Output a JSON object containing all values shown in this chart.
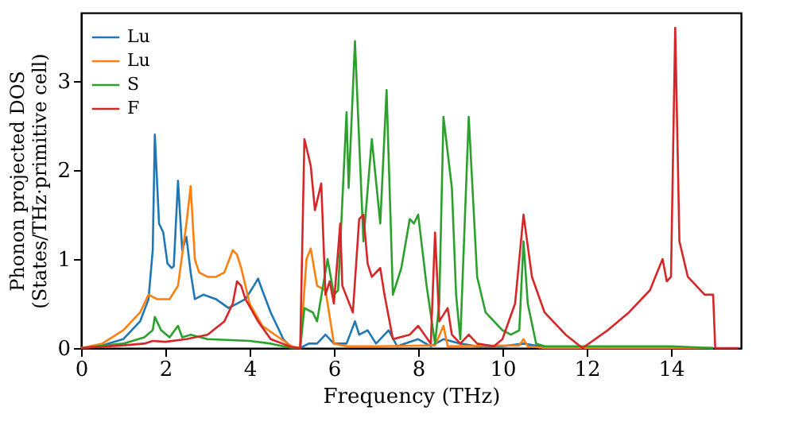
{
  "chart_data": {
    "type": "line",
    "xlabel": "Frequency (THz)",
    "ylabel": "Phonon projected DOS\n(States/THz·primitive cell)",
    "xlim": [
      0,
      15.66
    ],
    "xticks": [
      0,
      2,
      4,
      6,
      8,
      10,
      12,
      14
    ],
    "ylim": [
      0,
      3.77
    ],
    "yticks": [
      0,
      1,
      2,
      3
    ],
    "legend": "top left",
    "grid": false,
    "line_style": "solid",
    "marker": "none",
    "series": [
      {
        "name": "Lu",
        "color": "#1f77b4",
        "x": [
          0,
          0.5,
          1,
          1.4,
          1.6,
          1.7,
          1.75,
          1.85,
          1.95,
          2.05,
          2.15,
          2.2,
          2.3,
          2.4,
          2.5,
          2.6,
          2.7,
          2.9,
          3.2,
          3.5,
          3.7,
          3.9,
          4.1,
          4.2,
          4.3,
          4.5,
          4.8,
          5.0,
          5.2,
          5.4,
          5.6,
          5.8,
          6.0,
          6.3,
          6.5,
          6.6,
          6.8,
          7.0,
          7.3,
          7.5,
          8.0,
          8.3,
          8.6,
          9.0,
          9.5,
          10.0,
          10.5,
          11.0,
          15.0
        ],
        "values": [
          0,
          0.03,
          0.1,
          0.3,
          0.55,
          1.1,
          2.4,
          1.4,
          1.3,
          0.95,
          0.9,
          0.92,
          1.88,
          1.1,
          1.25,
          0.85,
          0.55,
          0.6,
          0.55,
          0.45,
          0.5,
          0.55,
          0.7,
          0.78,
          0.65,
          0.4,
          0.1,
          0,
          0,
          0.05,
          0.05,
          0.15,
          0.05,
          0.05,
          0.3,
          0.15,
          0.2,
          0.05,
          0.2,
          0.02,
          0.1,
          0.02,
          0.1,
          0.05,
          0.01,
          0.02,
          0.05,
          0.01,
          0
        ]
      },
      {
        "name": "Lu",
        "color": "#ff7f0e",
        "x": [
          0,
          0.5,
          1,
          1.4,
          1.6,
          1.8,
          2.1,
          2.3,
          2.5,
          2.6,
          2.7,
          2.8,
          3.0,
          3.2,
          3.4,
          3.6,
          3.7,
          3.8,
          4.0,
          4.3,
          4.6,
          5.0,
          5.2,
          5.35,
          5.45,
          5.6,
          5.8,
          6.0,
          6.3,
          7.0,
          8.4,
          8.6,
          8.7,
          10.4,
          10.5,
          10.6,
          11.0,
          15.0
        ],
        "values": [
          0,
          0.05,
          0.2,
          0.4,
          0.6,
          0.55,
          0.55,
          0.7,
          1.4,
          1.82,
          1.0,
          0.85,
          0.8,
          0.8,
          0.85,
          1.1,
          1.05,
          0.9,
          0.5,
          0.25,
          0.15,
          0.02,
          0,
          1.0,
          1.12,
          0.7,
          0.65,
          0.05,
          0.02,
          0.02,
          0.03,
          0.25,
          0.02,
          0.03,
          0.1,
          0.02,
          0,
          0
        ]
      },
      {
        "name": "S",
        "color": "#2ca02c",
        "x": [
          0,
          1,
          1.5,
          1.7,
          1.75,
          1.9,
          2.1,
          2.3,
          2.4,
          2.6,
          3.0,
          4.0,
          4.5,
          5.0,
          5.2,
          5.3,
          5.5,
          5.6,
          5.85,
          6.0,
          6.1,
          6.3,
          6.35,
          6.5,
          6.7,
          6.9,
          7.1,
          7.25,
          7.4,
          7.6,
          7.8,
          7.9,
          8.0,
          8.2,
          8.4,
          8.5,
          8.6,
          8.8,
          8.9,
          9.0,
          9.2,
          9.4,
          9.6,
          10.0,
          10.2,
          10.4,
          10.5,
          10.6,
          10.8,
          11.0,
          14.0,
          15.0
        ],
        "values": [
          0,
          0.05,
          0.12,
          0.2,
          0.35,
          0.2,
          0.12,
          0.25,
          0.12,
          0.15,
          0.1,
          0.08,
          0.05,
          0,
          0,
          0.45,
          0.4,
          0.3,
          1.0,
          0.6,
          0.65,
          2.65,
          1.8,
          3.45,
          1.2,
          2.35,
          1.4,
          2.9,
          0.6,
          0.9,
          1.45,
          1.4,
          1.5,
          0.7,
          0.05,
          0.5,
          2.6,
          1.8,
          0.6,
          0.1,
          2.6,
          0.8,
          0.4,
          0.2,
          0.15,
          0.2,
          1.2,
          0.5,
          0.05,
          0.02,
          0.02,
          0
        ]
      },
      {
        "name": "F",
        "color": "#d62728",
        "x": [
          0,
          1,
          1.5,
          1.7,
          2,
          2.5,
          3,
          3.4,
          3.6,
          3.7,
          3.8,
          3.9,
          4.2,
          4.5,
          5.0,
          5.2,
          5.3,
          5.45,
          5.55,
          5.7,
          5.8,
          5.9,
          6.0,
          6.15,
          6.2,
          6.45,
          6.6,
          6.7,
          6.8,
          6.9,
          7.1,
          7.2,
          7.4,
          7.8,
          8.0,
          8.3,
          8.4,
          8.5,
          8.7,
          8.8,
          9.0,
          9.2,
          9.4,
          9.8,
          10.0,
          10.3,
          10.5,
          10.7,
          11.0,
          11.5,
          11.9,
          12.5,
          13.0,
          13.5,
          13.8,
          13.9,
          14.0,
          14.1,
          14.2,
          14.4,
          14.8,
          15.0,
          15.05,
          15.6
        ],
        "values": [
          0,
          0.03,
          0.05,
          0.08,
          0.07,
          0.1,
          0.15,
          0.3,
          0.5,
          0.75,
          0.7,
          0.55,
          0.3,
          0.1,
          0.01,
          0,
          2.35,
          2.05,
          1.55,
          1.85,
          0.6,
          0.75,
          0.5,
          1.4,
          0.7,
          0.4,
          1.45,
          1.5,
          0.95,
          0.8,
          0.9,
          0.6,
          0.1,
          0.15,
          0.25,
          0.05,
          1.3,
          0.3,
          0.45,
          0.15,
          0.05,
          0.15,
          0.05,
          0.02,
          0.1,
          0.5,
          1.5,
          0.8,
          0.4,
          0.15,
          0,
          0.2,
          0.4,
          0.65,
          1.0,
          0.75,
          0.8,
          3.6,
          1.2,
          0.8,
          0.6,
          0.6,
          0,
          0
        ]
      }
    ]
  }
}
